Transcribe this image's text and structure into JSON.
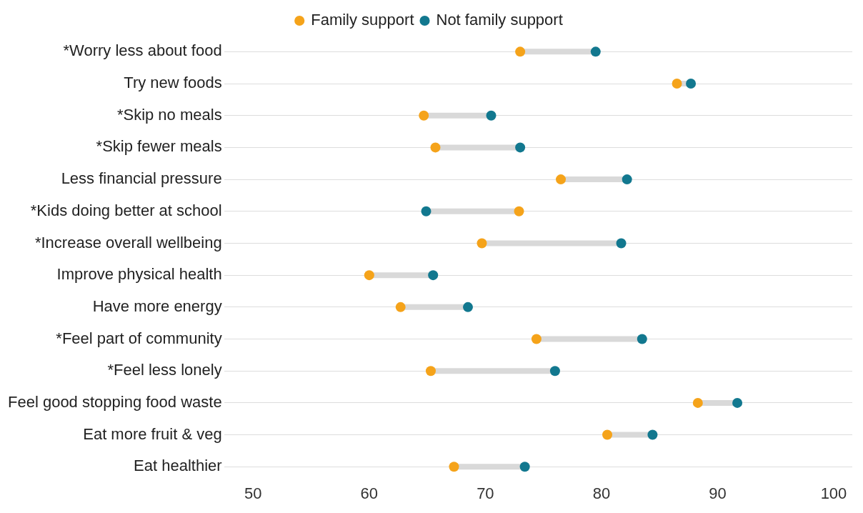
{
  "chart_data": {
    "type": "scatter",
    "orientation": "horizontal",
    "marker": "circle",
    "grid": "y",
    "legend": "top",
    "categories": [
      "*Worry less about food",
      "Try new foods",
      "*Skip no meals",
      "*Skip fewer meals",
      "Less financial pressure",
      "*Kids doing better at school",
      "*Increase overall wellbeing",
      "Improve physical health",
      "Have more energy",
      "*Feel part of community",
      "*Feel less lonely",
      "Feel good stopping food waste",
      "Eat more fruit & veg",
      "Eat healthier"
    ],
    "series": [
      {
        "name": "Family support",
        "color": "#f5a31a",
        "values": [
          73.0,
          86.5,
          64.7,
          65.7,
          76.5,
          72.9,
          69.7,
          60.0,
          62.7,
          74.4,
          65.3,
          88.3,
          80.5,
          67.3
        ]
      },
      {
        "name": "Not family support",
        "color": "#12788f",
        "values": [
          79.5,
          87.7,
          70.5,
          73.0,
          82.2,
          64.9,
          81.7,
          65.5,
          68.5,
          83.5,
          76.0,
          91.7,
          84.4,
          73.4
        ]
      }
    ],
    "xlim": [
      47.5,
      101.6
    ],
    "xticks": [
      50,
      60,
      70,
      80,
      90,
      100
    ]
  }
}
